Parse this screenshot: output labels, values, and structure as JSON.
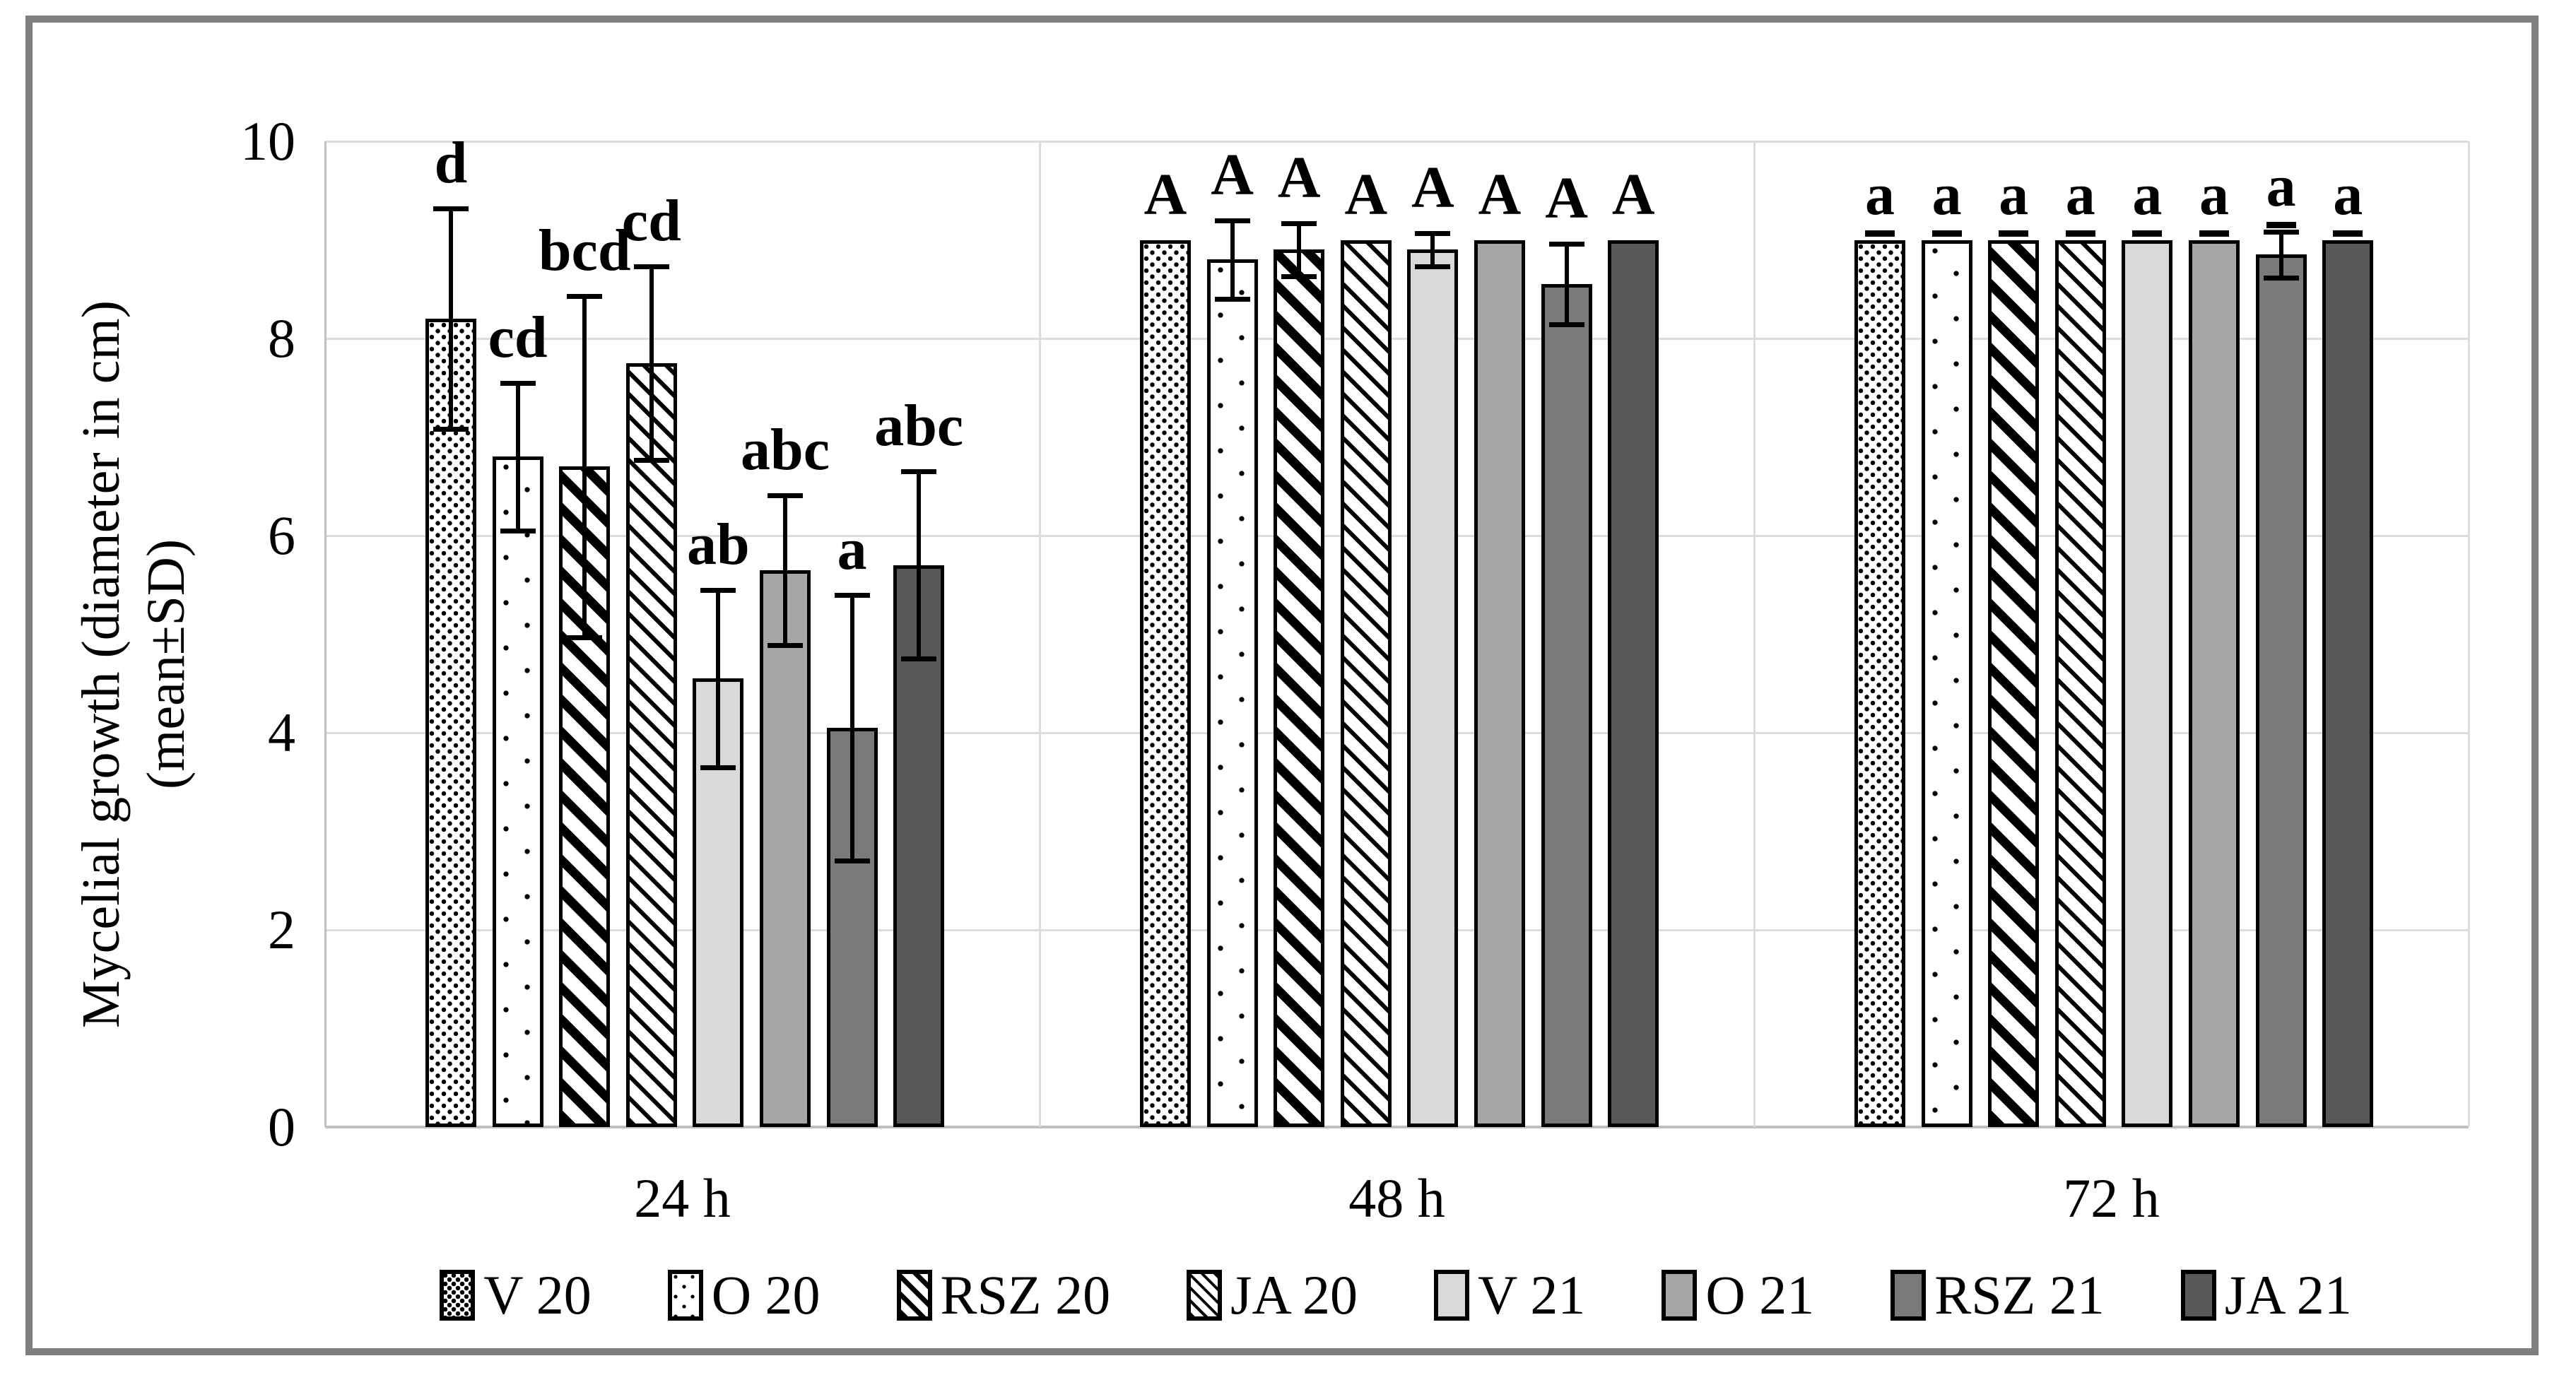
{
  "figure": {
    "background": "#ffffff",
    "frame_color": "#7f7f7f"
  },
  "y_axis": {
    "title_line1": "Mycelial growth (diameter in cm)",
    "title_line2": "(mean±SD)",
    "tick_labels": [
      "0",
      "2",
      "4",
      "6",
      "8",
      "10"
    ]
  },
  "x_axis": {
    "group_labels": [
      "24 h",
      "48 h",
      "72 h"
    ]
  },
  "chart_data": {
    "type": "bar",
    "title": "",
    "categories": [
      "24 h",
      "48 h",
      "72 h"
    ],
    "ylabel": "Mycelial growth (diameter in cm) (mean±SD)",
    "ylim": [
      0,
      10
    ],
    "yticks": [
      0,
      2,
      4,
      6,
      8,
      10
    ],
    "grid": true,
    "legend_position": "bottom",
    "gridline_color": "#dcdcdc",
    "axis_line_color": "#c0c0c0",
    "error_bar_color": "#000000",
    "series": [
      {
        "name": "V 20",
        "pattern": "dense-dots",
        "fill": "#ffffff",
        "values": [
          8.2,
          9.0,
          9.0
        ],
        "sd": [
          1.12,
          0,
          0
        ],
        "letters": [
          "d",
          "A",
          "a"
        ]
      },
      {
        "name": "O 20",
        "pattern": "sparse-dots",
        "fill": "#ffffff",
        "values": [
          6.8,
          8.8,
          9.0
        ],
        "sd": [
          0.75,
          0.4,
          0
        ],
        "letters": [
          "cd",
          "A",
          "a"
        ]
      },
      {
        "name": "RSZ 20",
        "pattern": "wide-down-diagonal",
        "fill": "#ffffff",
        "values": [
          6.7,
          8.9,
          9.0
        ],
        "sd": [
          1.73,
          0.27,
          0
        ],
        "letters": [
          "bcd",
          "A",
          "a"
        ]
      },
      {
        "name": "JA 20",
        "pattern": "thin-down-diagonal",
        "fill": "#ffffff",
        "values": [
          7.75,
          9.0,
          9.0
        ],
        "sd": [
          0.98,
          0,
          0
        ],
        "letters": [
          "cd",
          "A",
          "a"
        ]
      },
      {
        "name": "V 21",
        "pattern": "solid",
        "fill": "#d9d9d9",
        "values": [
          4.55,
          8.9,
          9.0
        ],
        "sd": [
          0.9,
          0.17,
          0
        ],
        "letters": [
          "ab",
          "A",
          "a"
        ]
      },
      {
        "name": "O 21",
        "pattern": "solid",
        "fill": "#a6a6a6",
        "values": [
          5.65,
          9.0,
          9.0
        ],
        "sd": [
          0.76,
          0,
          0
        ],
        "letters": [
          "abc",
          "A",
          "a"
        ]
      },
      {
        "name": "RSZ 21",
        "pattern": "solid",
        "fill": "#7a7a7a",
        "values": [
          4.05,
          8.55,
          8.85
        ],
        "sd": [
          1.35,
          0.41,
          0.23
        ],
        "letters": [
          "a",
          "A",
          "a"
        ]
      },
      {
        "name": "JA 21",
        "pattern": "solid",
        "fill": "#595959",
        "values": [
          5.7,
          9.0,
          9.0
        ],
        "sd": [
          0.95,
          0,
          0
        ],
        "letters": [
          "abc",
          "A",
          "a"
        ]
      }
    ],
    "letters_underlined_in_group": "72 h"
  }
}
